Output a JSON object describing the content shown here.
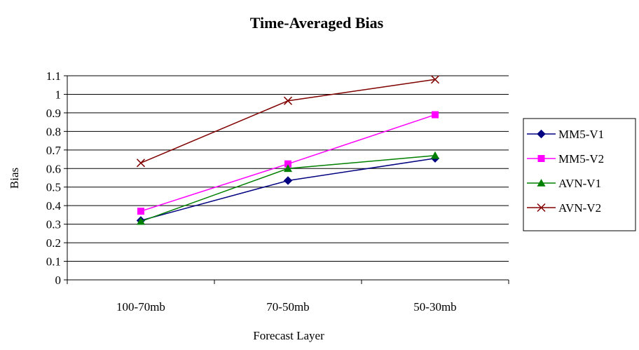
{
  "chart_data": {
    "type": "line",
    "title": "Time-Averaged Bias",
    "xlabel": "Forecast Layer",
    "ylabel": "Bias",
    "categories": [
      "100-70mb",
      "70-50mb",
      "50-30mb"
    ],
    "ylim": [
      0,
      1.1
    ],
    "yticks": [
      "0",
      "0.1",
      "0.2",
      "0.3",
      "0.4",
      "0.5",
      "0.6",
      "0.7",
      "0.8",
      "0.9",
      "1",
      "1.1"
    ],
    "grid": true,
    "legend_position": "right",
    "series": [
      {
        "name": "MM5-V1",
        "values": [
          0.32,
          0.535,
          0.655
        ],
        "color": "#000080",
        "marker": "diamond"
      },
      {
        "name": "MM5-V2",
        "values": [
          0.37,
          0.625,
          0.89
        ],
        "color": "#ff00ff",
        "marker": "square"
      },
      {
        "name": "AVN-V1",
        "values": [
          0.315,
          0.6,
          0.67
        ],
        "color": "#008000",
        "marker": "triangle"
      },
      {
        "name": "AVN-V2",
        "values": [
          0.63,
          0.965,
          1.08
        ],
        "color": "#800000",
        "marker": "x"
      }
    ]
  }
}
